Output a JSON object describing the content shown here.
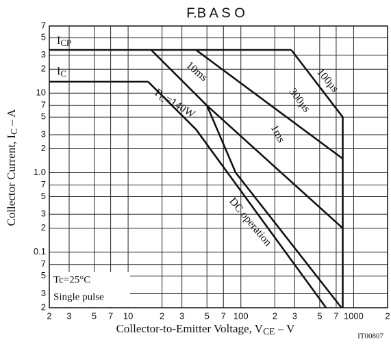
{
  "chart_data": {
    "type": "line",
    "title": "F.B A S O",
    "x_label": {
      "text": "Collector-to-Emitter Voltage, V",
      "sub": "CE",
      "after": "  –  V"
    },
    "y_label": {
      "text": "Collector Current, I",
      "sub": "C",
      "after": "  –  A"
    },
    "code": "IT00807",
    "conditions": [
      "Tc=25°C",
      "Single pulse"
    ],
    "xlog": true,
    "ylog": true,
    "grid": true,
    "color": "#111111",
    "xlim": [
      2,
      2000
    ],
    "ylim": [
      0.02,
      70
    ],
    "xticks": [
      2,
      3,
      5,
      7,
      10,
      {
        "value": 20,
        "label": "2"
      },
      {
        "value": 30,
        "label": "3"
      },
      {
        "value": 50,
        "label": "5"
      },
      {
        "value": 70,
        "label": "7"
      },
      100,
      {
        "value": 200,
        "label": "2"
      },
      {
        "value": 300,
        "label": "3"
      },
      {
        "value": 500,
        "label": "5"
      },
      {
        "value": 700,
        "label": "7"
      },
      1000,
      {
        "value": 2000,
        "label": "2"
      }
    ],
    "yticks": [
      {
        "value": 0.02,
        "label": "2"
      },
      {
        "value": 0.03,
        "label": "3"
      },
      {
        "value": 0.05,
        "label": "5"
      },
      {
        "value": 0.07,
        "label": "7"
      },
      0.1,
      {
        "value": 0.2,
        "label": "2"
      },
      {
        "value": 0.3,
        "label": "3"
      },
      {
        "value": 0.5,
        "label": "5"
      },
      {
        "value": 0.7,
        "label": "7"
      },
      {
        "value": 1,
        "label": "1.0"
      },
      2,
      3,
      5,
      7,
      10,
      {
        "value": 20,
        "label": "2"
      },
      {
        "value": 30,
        "label": "3"
      },
      {
        "value": 50,
        "label": "5"
      },
      {
        "value": 70,
        "label": "7"
      }
    ],
    "series": [
      {
        "x": [
          2,
          280
        ],
        "values": [
          35,
          35
        ]
      },
      {
        "x": [
          2,
          15
        ],
        "values": [
          14,
          14
        ]
      },
      {
        "x": [
          280,
          800,
          800
        ],
        "values": [
          35,
          5,
          0.02
        ]
      },
      {
        "x": [
          40,
          800
        ],
        "values": [
          35,
          1.5
        ]
      },
      {
        "x": [
          50,
          800
        ],
        "values": [
          7,
          0.2
        ]
      },
      {
        "x": [
          16,
          50,
          90,
          780
        ],
        "values": [
          35,
          7,
          1,
          0.02
        ]
      },
      {
        "x": [
          15,
          40,
          570
        ],
        "values": [
          14,
          3.5,
          0.02
        ]
      }
    ],
    "annotations": [
      {
        "text": "I",
        "sub": "CP"
      },
      {
        "text": "I",
        "sub": "C"
      },
      {
        "text": "10ms"
      },
      {
        "text": "100µs"
      },
      {
        "text": "300µs"
      },
      {
        "text": "1ms"
      },
      {
        "text": "P",
        "sub": "C",
        "after": "=140W"
      },
      {
        "text": "DC operation"
      }
    ]
  }
}
